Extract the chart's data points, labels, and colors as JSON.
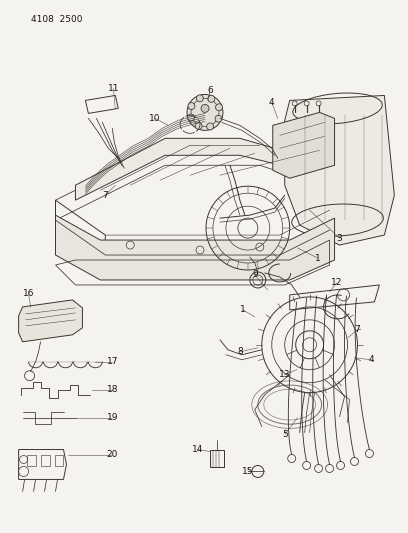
{
  "bg_color": "#f5f3ef",
  "line_color": "#3a3530",
  "label_color": "#1a1510",
  "fig_width": 4.08,
  "fig_height": 5.33,
  "dpi": 100,
  "header": "4108  2500",
  "lw": 0.7,
  "label_fs": 6.5
}
